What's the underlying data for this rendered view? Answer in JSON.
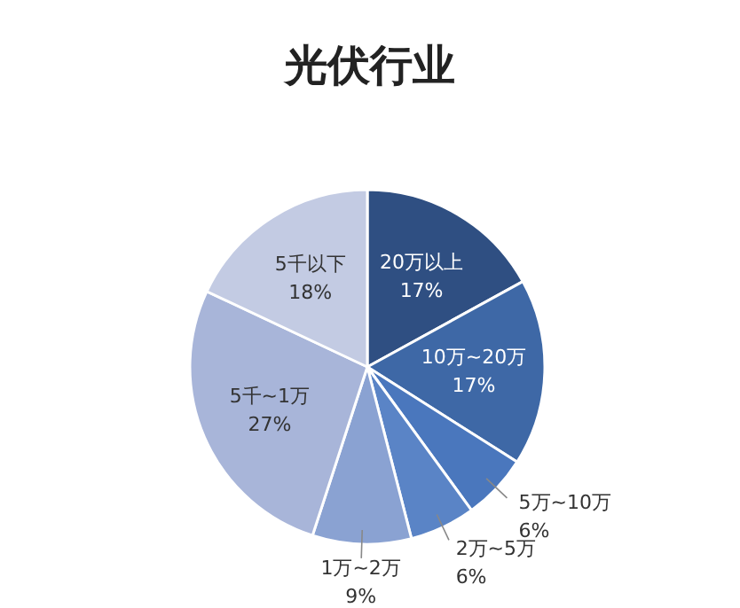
{
  "chart_data": {
    "type": "pie",
    "title": "光伏行业",
    "categories": [
      "20万以上",
      "10万~20万",
      "5万~10万",
      "2万~5万",
      "1万~2万",
      "5千~1万",
      "5千以下"
    ],
    "values": [
      17,
      17,
      6,
      6,
      9,
      27,
      18
    ],
    "value_labels": [
      "17%",
      "17%",
      "6%",
      "6%",
      "9%",
      "27%",
      "18%"
    ],
    "colors": [
      "#2f4f82",
      "#3e68a6",
      "#4a77bd",
      "#5a84c6",
      "#8aa2d2",
      "#a8b5d9",
      "#c3cbe3"
    ]
  }
}
